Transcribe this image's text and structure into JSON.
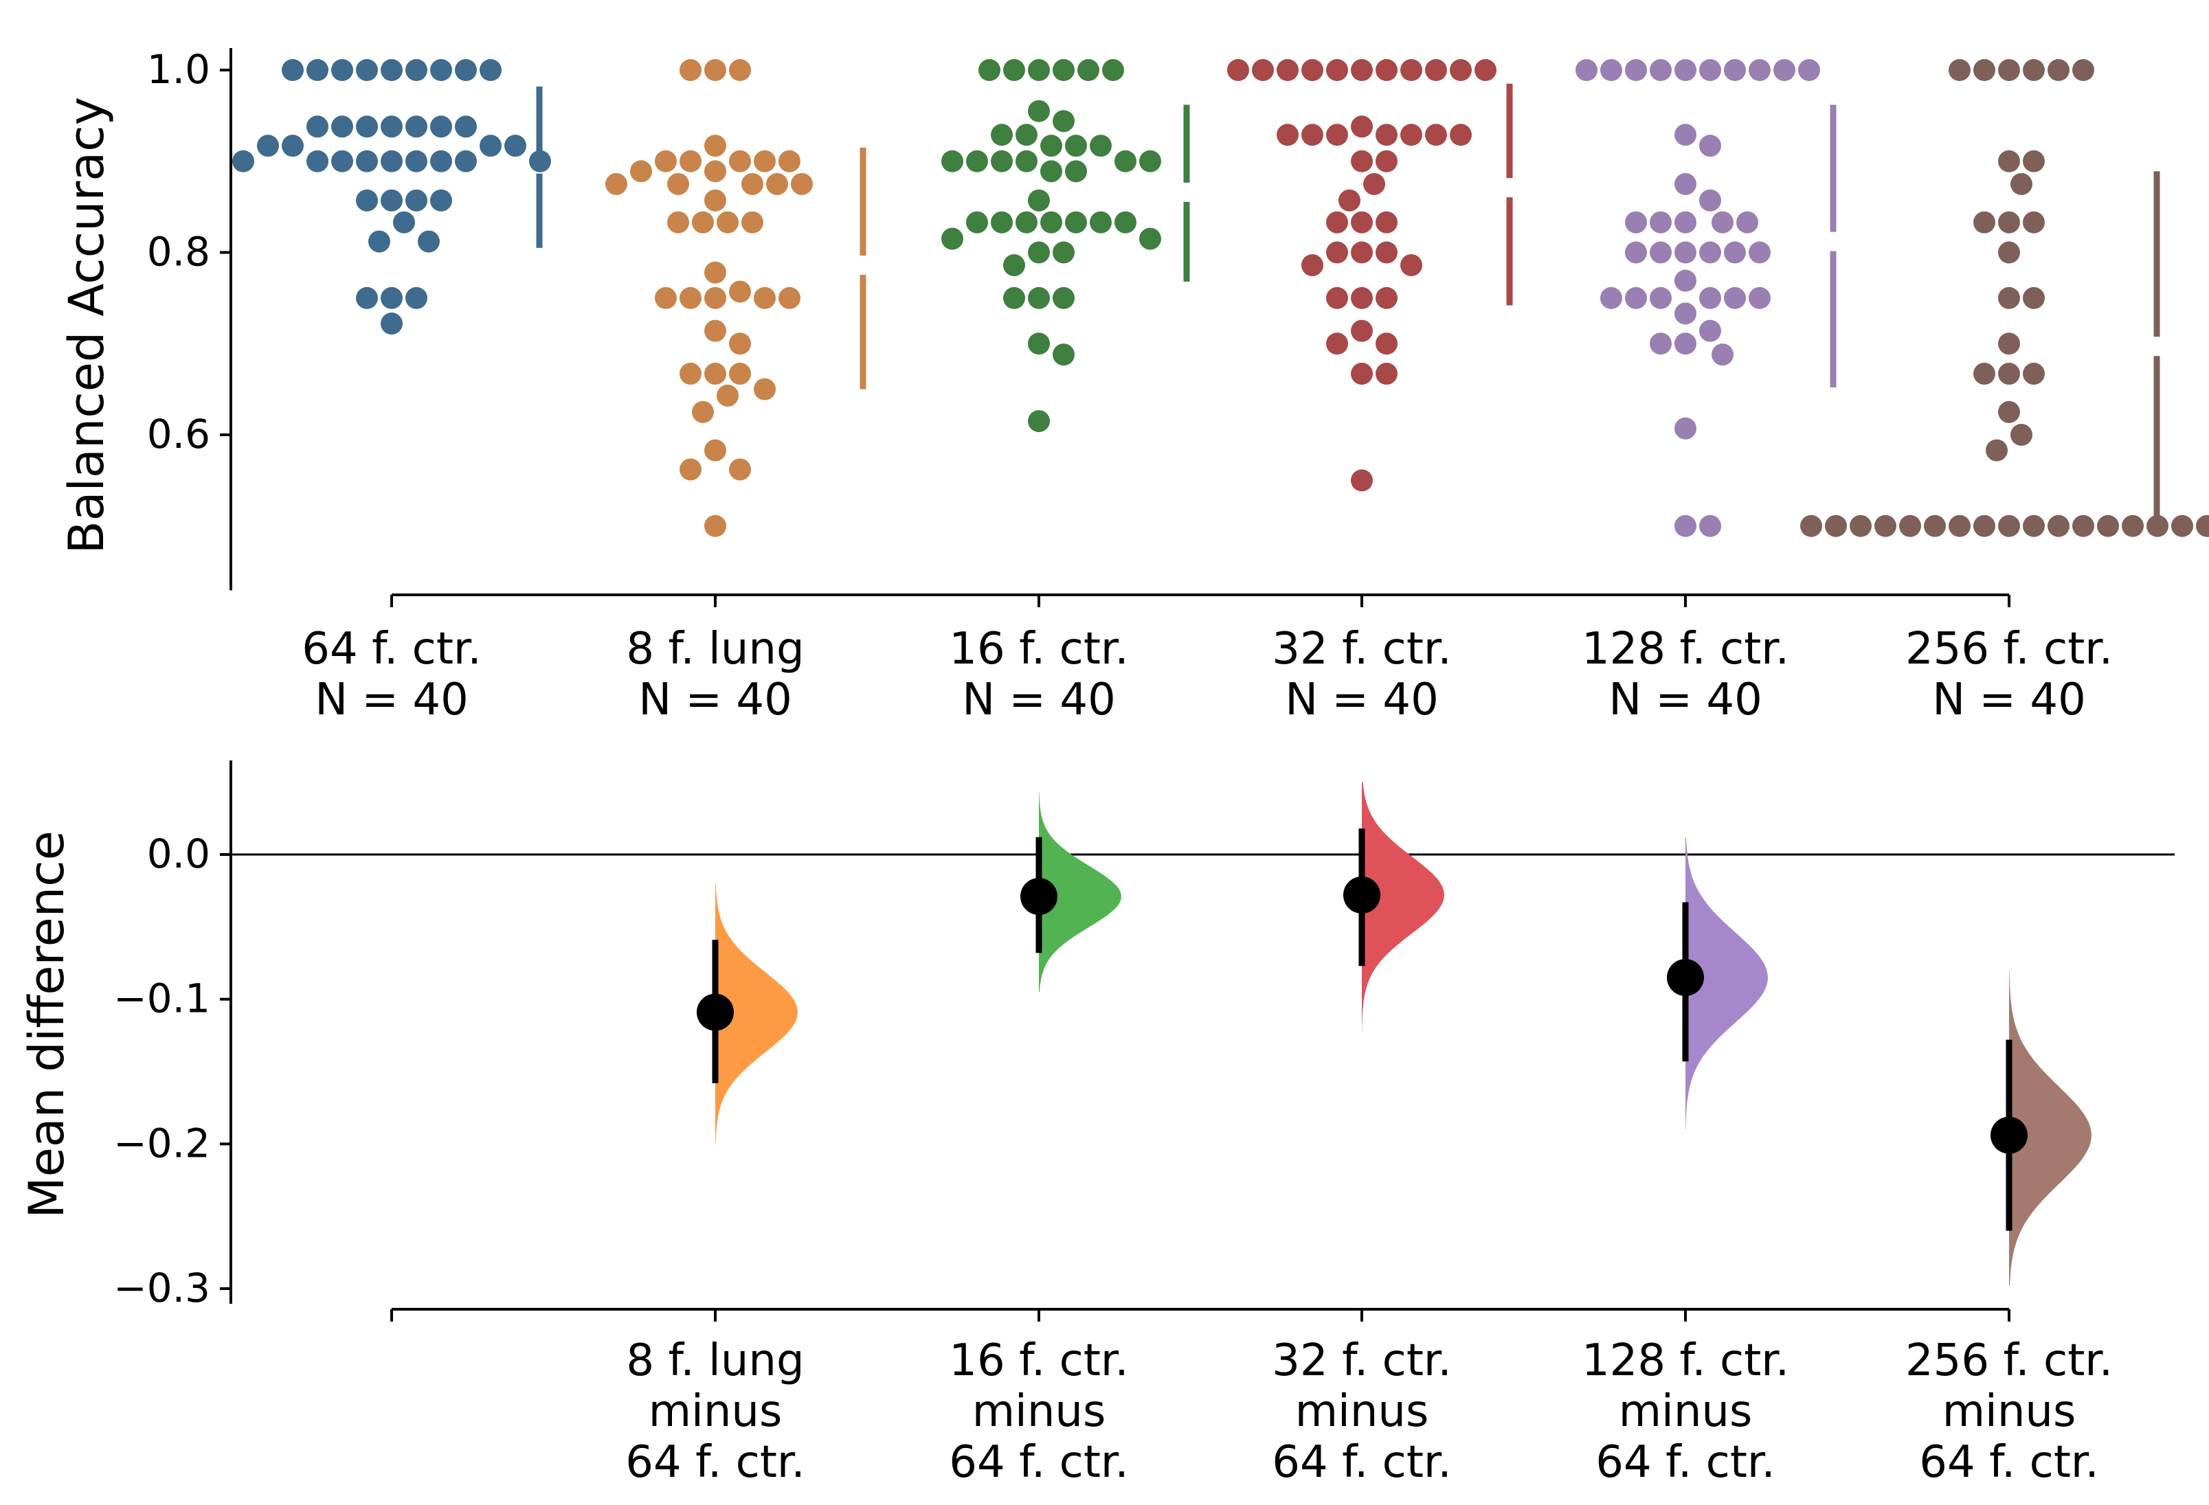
{
  "chart_data": [
    {
      "type": "swarm",
      "ylabel": "Balanced Accuracy",
      "ylim": [
        0.44,
        1.03
      ],
      "yticks": [
        {
          "value": 0.6,
          "label": "0.6"
        },
        {
          "value": 0.8,
          "label": "0.8"
        },
        {
          "value": 1.0,
          "label": "1.0"
        }
      ],
      "groups": [
        {
          "name": "64 f. ctr.",
          "n_label": "N = 40",
          "color": "#3e6b8e",
          "mean": 0.897,
          "sd_low": 0.805,
          "sd_high": 0.982,
          "values": [
            1.0,
            1.0,
            1.0,
            1.0,
            1.0,
            1.0,
            1.0,
            1.0,
            1.0,
            0.938,
            0.938,
            0.938,
            0.938,
            0.938,
            0.938,
            0.938,
            0.917,
            0.917,
            0.917,
            0.917,
            0.9,
            0.9,
            0.9,
            0.9,
            0.9,
            0.9,
            0.9,
            0.9,
            0.9,
            0.857,
            0.857,
            0.857,
            0.857,
            0.833,
            0.812,
            0.812,
            0.75,
            0.75,
            0.75,
            0.722
          ]
        },
        {
          "name": "8 f. lung",
          "n_label": "N = 40",
          "color": "#c8844a",
          "mean": 0.786,
          "sd_low": 0.65,
          "sd_high": 0.915,
          "values": [
            1.0,
            1.0,
            1.0,
            0.917,
            0.9,
            0.9,
            0.9,
            0.9,
            0.889,
            0.889,
            0.875,
            0.875,
            0.875,
            0.875,
            0.857,
            0.833,
            0.833,
            0.833,
            0.833,
            0.778,
            0.757,
            0.75,
            0.75,
            0.75,
            0.75,
            0.714,
            0.7,
            0.667,
            0.667,
            0.667,
            0.65,
            0.643,
            0.625,
            0.583,
            0.562,
            0.562,
            0.5,
            0.9,
            0.875,
            0.75
          ]
        },
        {
          "name": "16 f. ctr.",
          "n_label": "N = 40",
          "color": "#3f7f3f",
          "mean": 0.866,
          "sd_low": 0.768,
          "sd_high": 0.962,
          "values": [
            1.0,
            1.0,
            1.0,
            1.0,
            1.0,
            1.0,
            0.955,
            0.944,
            0.929,
            0.929,
            0.917,
            0.917,
            0.917,
            0.9,
            0.9,
            0.9,
            0.9,
            0.9,
            0.9,
            0.889,
            0.889,
            0.857,
            0.833,
            0.833,
            0.833,
            0.833,
            0.833,
            0.833,
            0.833,
            0.815,
            0.815,
            0.8,
            0.8,
            0.786,
            0.75,
            0.75,
            0.75,
            0.7,
            0.688,
            0.615
          ]
        },
        {
          "name": "32 f. ctr.",
          "n_label": "N = 40",
          "color": "#a84848",
          "mean": 0.871,
          "sd_low": 0.742,
          "sd_high": 0.985,
          "values": [
            1.0,
            1.0,
            1.0,
            1.0,
            1.0,
            1.0,
            1.0,
            1.0,
            1.0,
            1.0,
            1.0,
            0.938,
            0.929,
            0.929,
            0.929,
            0.929,
            0.929,
            0.929,
            0.929,
            0.9,
            0.9,
            0.875,
            0.857,
            0.833,
            0.833,
            0.833,
            0.8,
            0.8,
            0.8,
            0.786,
            0.786,
            0.75,
            0.75,
            0.75,
            0.714,
            0.7,
            0.7,
            0.667,
            0.667,
            0.55
          ]
        },
        {
          "name": "128 f. ctr.",
          "n_label": "N = 40",
          "color": "#9a7fb2",
          "mean": 0.812,
          "sd_low": 0.652,
          "sd_high": 0.962,
          "values": [
            1.0,
            1.0,
            1.0,
            1.0,
            1.0,
            1.0,
            1.0,
            1.0,
            1.0,
            1.0,
            0.929,
            0.917,
            0.875,
            0.857,
            0.833,
            0.833,
            0.833,
            0.833,
            0.833,
            0.8,
            0.8,
            0.8,
            0.8,
            0.8,
            0.8,
            0.769,
            0.75,
            0.75,
            0.75,
            0.75,
            0.75,
            0.75,
            0.733,
            0.714,
            0.7,
            0.7,
            0.688,
            0.607,
            0.5,
            0.5
          ]
        },
        {
          "name": "256 f. ctr.",
          "n_label": "N = 40",
          "color": "#7f6058",
          "mean": 0.697,
          "sd_low": 0.5,
          "sd_high": 0.889,
          "values": [
            1.0,
            1.0,
            1.0,
            1.0,
            1.0,
            1.0,
            0.9,
            0.9,
            0.875,
            0.833,
            0.833,
            0.833,
            0.8,
            0.75,
            0.75,
            0.7,
            0.667,
            0.667,
            0.667,
            0.625,
            0.6,
            0.583,
            0.5,
            0.5,
            0.5,
            0.5,
            0.5,
            0.5,
            0.5,
            0.5,
            0.5,
            0.5,
            0.5,
            0.5,
            0.5,
            0.5,
            0.5,
            0.5,
            0.5,
            0.5
          ]
        }
      ]
    },
    {
      "type": "estimation",
      "ylabel": "Mean difference",
      "ylim": [
        -0.3,
        0.065
      ],
      "zero_line": 0,
      "yticks": [
        {
          "value": 0.0,
          "label": "0.0"
        },
        {
          "value": -0.1,
          "label": "−0.1"
        },
        {
          "value": -0.2,
          "label": "−0.2"
        },
        {
          "value": -0.3,
          "label": "−0.3"
        }
      ],
      "comparisons": [
        {
          "label_lines": [
            "8 f. lung",
            "minus",
            "64 f. ctr."
          ],
          "color": "#fd9a43",
          "diff": -0.109,
          "ci_low": -0.158,
          "ci_high": -0.059,
          "dist_low": -0.2,
          "dist_high": -0.02
        },
        {
          "label_lines": [
            "16 f. ctr.",
            "minus",
            "64 f. ctr."
          ],
          "color": "#52b352",
          "diff": -0.029,
          "ci_low": -0.068,
          "ci_high": 0.012,
          "dist_low": -0.095,
          "dist_high": 0.043
        },
        {
          "label_lines": [
            "32 f. ctr.",
            "minus",
            "64 f. ctr."
          ],
          "color": "#e0525a",
          "diff": -0.028,
          "ci_low": -0.077,
          "ci_high": 0.018,
          "dist_low": -0.123,
          "dist_high": 0.05
        },
        {
          "label_lines": [
            "128 f. ctr.",
            "minus",
            "64 f. ctr."
          ],
          "color": "#a787cc",
          "diff": -0.085,
          "ci_low": -0.143,
          "ci_high": -0.033,
          "dist_low": -0.19,
          "dist_high": 0.012
        },
        {
          "label_lines": [
            "256 f. ctr.",
            "minus",
            "64 f. ctr."
          ],
          "color": "#a57a6e",
          "diff": -0.194,
          "ci_low": -0.26,
          "ci_high": -0.128,
          "dist_low": -0.298,
          "dist_high": -0.08
        }
      ]
    }
  ]
}
